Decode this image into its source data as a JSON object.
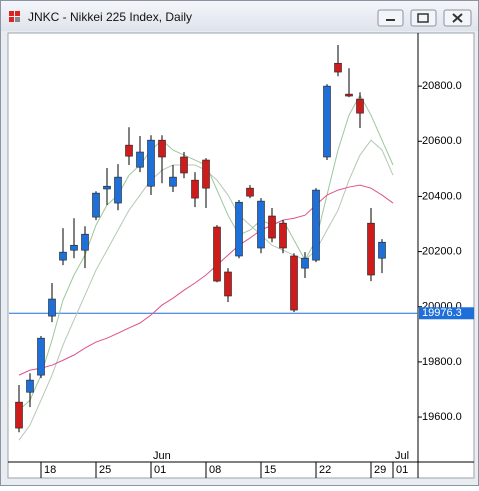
{
  "window_title": "JNKC - Nikkei 225 Index, Daily",
  "chart_data": {
    "type": "candlestick",
    "categories": [
      null,
      null,
      "18",
      null,
      null,
      null,
      null,
      "25",
      null,
      null,
      null,
      null,
      "01",
      null,
      null,
      null,
      null,
      "08",
      null,
      null,
      null,
      null,
      "15",
      null,
      null,
      null,
      null,
      "22",
      null,
      null,
      null,
      null,
      "29",
      null,
      "01"
    ],
    "month_labels": [
      "Jun",
      "Jul"
    ],
    "open": [
      19654,
      19690,
      19752,
      19966,
      20169,
      20205,
      20205,
      20325,
      20427,
      20376,
      20586,
      20506,
      20437,
      20604,
      20437,
      20543,
      20459,
      20532,
      20289,
      20126,
      20184,
      20430,
      20213,
      20329,
      20303,
      20184,
      20140,
      20169,
      20543,
      20883,
      20771,
      20753,
      20303,
      20176,
      null
    ],
    "high": [
      19716,
      19759,
      19894,
      20086,
      20285,
      20321,
      20292,
      20419,
      20503,
      20517,
      20651,
      20619,
      20622,
      20622,
      20514,
      20561,
      20488,
      20539,
      20296,
      20140,
      20387,
      20441,
      20394,
      20358,
      20314,
      20194,
      20198,
      20430,
      20807,
      20949,
      20865,
      20778,
      20358,
      20245,
      null
    ],
    "low": [
      19545,
      19636,
      19741,
      19944,
      20151,
      20176,
      20140,
      20314,
      20369,
      20350,
      20514,
      20488,
      20405,
      20448,
      20416,
      20466,
      20361,
      20358,
      20089,
      20017,
      20176,
      20394,
      20194,
      20234,
      20194,
      19981,
      20104,
      20162,
      20532,
      20836,
      20760,
      20648,
      20093,
      20122,
      null
    ],
    "close": [
      19560,
      19734,
      19886,
      20028,
      20198,
      20223,
      20263,
      20412,
      20437,
      20470,
      20546,
      20561,
      20604,
      20543,
      20470,
      20485,
      20394,
      20430,
      20093,
      20039,
      20379,
      20401,
      20383,
      20249,
      20213,
      19988,
      20176,
      20423,
      20800,
      20851,
      20764,
      20702,
      20115,
      20234,
      null
    ],
    "up_color": "#1f6fd8",
    "down_color": "#cc1c1c",
    "lines": [
      {
        "color": "#9cc79c",
        "values": [
          19625,
          19661,
          19752,
          19879,
          20024,
          20115,
          20187,
          20296,
          20369,
          20405,
          20477,
          20514,
          20568,
          20604,
          20568,
          20550,
          20532,
          20514,
          20423,
          20332,
          20260,
          20278,
          20314,
          20296,
          20314,
          20242,
          20169,
          20242,
          20405,
          20568,
          20695,
          20767,
          20695,
          20604,
          20514
        ]
      },
      {
        "color": "#b4c8b4",
        "values": [
          19516,
          19571,
          19661,
          19752,
          19861,
          19952,
          20042,
          20133,
          20205,
          20278,
          20350,
          20405,
          20459,
          20495,
          20514,
          20514,
          20514,
          20495,
          20459,
          20405,
          20332,
          20296,
          20260,
          20223,
          20205,
          20187,
          20169,
          20205,
          20278,
          20350,
          20459,
          20550,
          20604,
          20568,
          20477
        ]
      },
      {
        "color": "#e0508c",
        "values": [
          19752,
          19770,
          19777,
          19788,
          19806,
          19825,
          19850,
          19872,
          19886,
          19904,
          19923,
          19941,
          19970,
          20006,
          20031,
          20060,
          20086,
          20115,
          20151,
          20187,
          20223,
          20249,
          20278,
          20296,
          20314,
          20321,
          20332,
          20369,
          20405,
          20423,
          20434,
          20441,
          20430,
          20405,
          20376
        ]
      }
    ],
    "hline": {
      "value": 19976.3,
      "color": "#1f6fd8"
    },
    "ylim": [
      19437,
      20989
    ],
    "yticks": [
      {
        "value": 19600,
        "label": "19600.0"
      },
      {
        "value": 19800,
        "label": "19800.0"
      },
      {
        "value": 20000,
        "label": "20000.0"
      },
      {
        "value": 20200,
        "label": "20200.0"
      },
      {
        "value": 20400,
        "label": "20400.0"
      },
      {
        "value": 20600,
        "label": "20600.0"
      },
      {
        "value": 20800,
        "label": "20800.0"
      }
    ],
    "grid": false
  }
}
